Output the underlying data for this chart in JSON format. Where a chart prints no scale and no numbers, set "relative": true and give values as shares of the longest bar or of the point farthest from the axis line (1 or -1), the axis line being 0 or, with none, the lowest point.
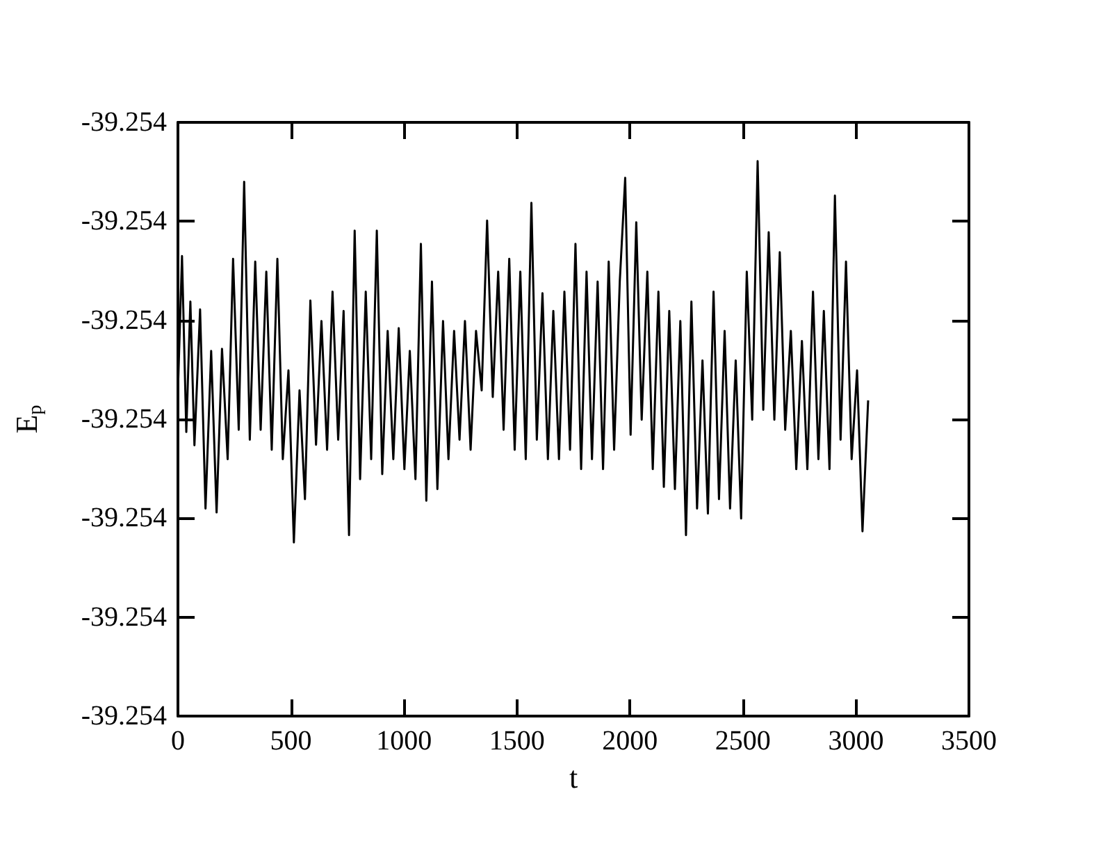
{
  "chart_data": {
    "type": "line",
    "xlabel": "t",
    "ylabel": "E$_{p}$",
    "xlim": [
      0,
      3500
    ],
    "xticks": [
      0,
      500,
      1000,
      1500,
      2000,
      2500,
      3000,
      3500
    ],
    "relative": true,
    "annotations": [
      "-39.254",
      "-39.254",
      "-39.254",
      "-39.254",
      "-39.254",
      "-39.254",
      "-39.254"
    ],
    "marker": "none",
    "line_style": "solid",
    "series": [
      {
        "color": "#000000",
        "x": [
          0,
          18,
          37,
          55,
          73,
          98,
          122,
          147,
          171,
          195,
          220,
          244,
          269,
          293,
          318,
          342,
          366,
          391,
          415,
          440,
          464,
          489,
          513,
          538,
          562,
          586,
          611,
          635,
          660,
          684,
          709,
          733,
          757,
          782,
          806,
          831,
          855,
          880,
          904,
          928,
          953,
          977,
          1002,
          1026,
          1051,
          1075,
          1099,
          1124,
          1148,
          1173,
          1197,
          1222,
          1246,
          1270,
          1295,
          1319,
          1344,
          1368,
          1393,
          1417,
          1441,
          1466,
          1490,
          1515,
          1539,
          1564,
          1588,
          1613,
          1637,
          1661,
          1686,
          1710,
          1735,
          1759,
          1784,
          1808,
          1832,
          1857,
          1881,
          1906,
          1930,
          1955,
          1979,
          2003,
          2028,
          2052,
          2077,
          2101,
          2126,
          2150,
          2174,
          2199,
          2223,
          2248,
          2272,
          2297,
          2321,
          2345,
          2370,
          2394,
          2419,
          2443,
          2468,
          2492,
          2517,
          2541,
          2565,
          2590,
          2614,
          2639,
          2663,
          2687,
          2712,
          2736,
          2761,
          2785,
          2810,
          2834,
          2858,
          2883,
          2907,
          2932,
          2956,
          2981,
          3005,
          3029,
          3054
        ],
        "values": [
          0.587,
          0.829,
          0.512,
          0.747,
          0.488,
          0.733,
          0.374,
          0.658,
          0.367,
          0.662,
          0.463,
          0.824,
          0.516,
          0.963,
          0.498,
          0.819,
          0.516,
          0.801,
          0.48,
          0.824,
          0.463,
          0.623,
          0.313,
          0.587,
          0.391,
          0.749,
          0.489,
          0.712,
          0.48,
          0.765,
          0.498,
          0.73,
          0.326,
          0.875,
          0.427,
          0.765,
          0.463,
          0.875,
          0.436,
          0.694,
          0.463,
          0.699,
          0.445,
          0.658,
          0.427,
          0.851,
          0.388,
          0.783,
          0.409,
          0.712,
          0.463,
          0.694,
          0.498,
          0.712,
          0.48,
          0.694,
          0.587,
          0.893,
          0.575,
          0.801,
          0.516,
          0.824,
          0.48,
          0.801,
          0.463,
          0.925,
          0.498,
          0.762,
          0.463,
          0.73,
          0.463,
          0.765,
          0.48,
          0.851,
          0.445,
          0.801,
          0.463,
          0.783,
          0.445,
          0.819,
          0.48,
          0.783,
          0.97,
          0.507,
          0.89,
          0.534,
          0.801,
          0.445,
          0.765,
          0.413,
          0.73,
          0.409,
          0.712,
          0.326,
          0.747,
          0.374,
          0.641,
          0.365,
          0.765,
          0.391,
          0.694,
          0.374,
          0.641,
          0.356,
          0.801,
          0.534,
          1,
          0.552,
          0.872,
          0.534,
          0.836,
          0.516,
          0.694,
          0.445,
          0.676,
          0.445,
          0.765,
          0.463,
          0.73,
          0.445,
          0.938,
          0.498,
          0.819,
          0.463,
          0.623,
          0.333,
          0.569
        ]
      }
    ]
  }
}
